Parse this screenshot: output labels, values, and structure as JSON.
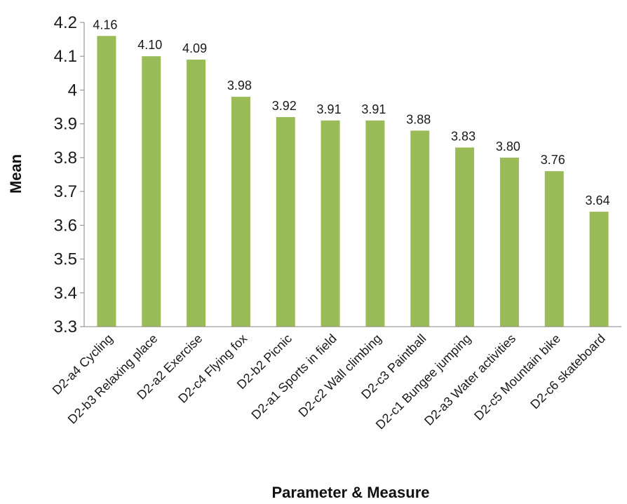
{
  "chart_data": {
    "type": "bar",
    "title": "",
    "xlabel": "Parameter & Measure",
    "ylabel": "Mean",
    "ylim": [
      3.3,
      4.2
    ],
    "yticks": [
      "3.3",
      "3.4",
      "3.5",
      "3.6",
      "3.7",
      "3.8",
      "3.9",
      "4",
      "4.1",
      "4.2"
    ],
    "grid": false,
    "legend": "none",
    "categories": [
      "D2-a4 Cycling",
      "D2-b3 Relaxing place",
      "D2-a2 Exercise",
      "D2-c4 Flying fox",
      "D2-b2 Picnic",
      "D2-a1 Sports in field",
      "D2-c2 Wall climbing",
      "D2-c3 Paintball",
      "D2-c1 Bungee jumping",
      "D2-a3 Water activities",
      "D2-c5 Mountain bike",
      "D2-c6 skateboard"
    ],
    "values": [
      4.16,
      4.1,
      4.09,
      3.98,
      3.92,
      3.91,
      3.91,
      3.88,
      3.83,
      3.8,
      3.76,
      3.64
    ],
    "data_labels": [
      "4.16",
      "4.10",
      "4.09",
      "3.98",
      "3.92",
      "3.91",
      "3.91",
      "3.88",
      "3.83",
      "3.80",
      "3.76",
      "3.64"
    ],
    "colors": {
      "bar": "#9bbb59",
      "axis": "#868686"
    }
  }
}
